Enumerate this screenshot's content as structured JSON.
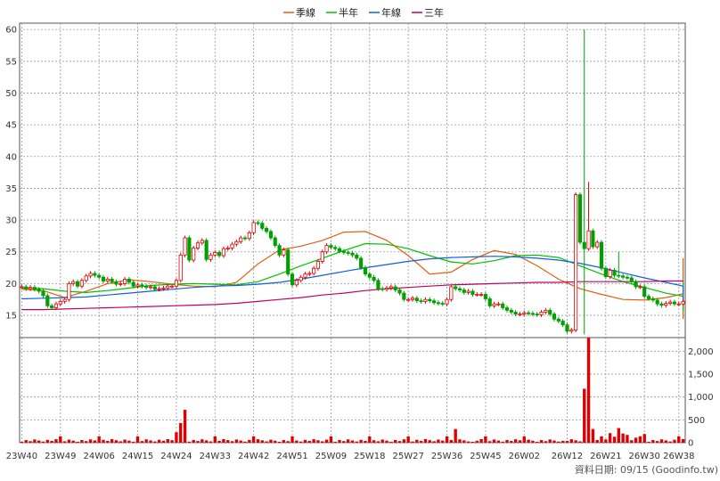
{
  "legend": [
    {
      "label": "季線",
      "color": "#e06010"
    },
    {
      "label": "半年",
      "color": "#00c000"
    },
    {
      "label": "年線",
      "color": "#1060e0"
    },
    {
      "label": "三年",
      "color": "#c00060"
    }
  ],
  "footer": "資料日期: 09/15  (Goodinfo.tw)",
  "colors": {
    "up": "#e00000",
    "down": "#00a000",
    "volume": "#e00000",
    "grid": "#999999",
    "frame": "#555555"
  },
  "chart_data": {
    "type": "candlestick",
    "price_ylim": [
      11.5,
      61
    ],
    "price_yticks": [
      15,
      20,
      25,
      30,
      35,
      40,
      45,
      50,
      55,
      60
    ],
    "volume_ylim": [
      0,
      2300
    ],
    "volume_yticks": [
      "0",
      "500",
      "1,000",
      "1,500",
      "2,000"
    ],
    "volume_ytick_values": [
      0,
      500,
      1000,
      1500,
      2000
    ],
    "x_tick_labels": [
      "23W40",
      "23W49",
      "24W06",
      "24W15",
      "24W24",
      "24W33",
      "24W42",
      "24W51",
      "25W09",
      "25W18",
      "25W27",
      "25W36",
      "25W45",
      "26W02",
      "26W12",
      "26W21",
      "26W30",
      "26W38"
    ],
    "x_tick_index": [
      0,
      9,
      18,
      27,
      36,
      45,
      54,
      63,
      72,
      81,
      90,
      99,
      108,
      117,
      127,
      136,
      145,
      153
    ],
    "num_weeks": 155,
    "close": [
      19.5,
      19.2,
      19.4,
      19.1,
      18.8,
      18.1,
      16.5,
      16.2,
      16.8,
      17.2,
      17.5,
      20.0,
      20.3,
      19.6,
      20.5,
      21.2,
      21.6,
      21.3,
      21.0,
      20.4,
      20.7,
      20.3,
      19.9,
      20.0,
      20.7,
      20.2,
      19.6,
      19.8,
      19.6,
      19.4,
      19.5,
      19.1,
      19.2,
      19.3,
      19.6,
      19.6,
      20.5,
      24.5,
      27.2,
      23.7,
      25.6,
      26.4,
      26.8,
      23.8,
      24.5,
      24.9,
      24.4,
      25.5,
      25.6,
      26.2,
      26.6,
      27.2,
      27.1,
      28.0,
      29.6,
      29.5,
      28.7,
      28.2,
      27.2,
      26.0,
      24.5,
      25.3,
      21.5,
      19.8,
      20.5,
      21.0,
      21.5,
      21.6,
      22.4,
      23.5,
      25.0,
      26.0,
      25.7,
      25.5,
      25.1,
      24.9,
      24.8,
      24.5,
      24.0,
      22.5,
      21.5,
      21.0,
      20.5,
      19.2,
      19.1,
      19.3,
      19.5,
      19.0,
      18.5,
      17.5,
      17.5,
      17.7,
      17.3,
      17.2,
      17.5,
      17.3,
      17.0,
      16.9,
      16.8,
      17.5,
      19.5,
      19.2,
      19.0,
      18.6,
      18.8,
      18.3,
      18.3,
      18.3,
      17.6,
      16.5,
      16.8,
      16.8,
      16.2,
      15.8,
      15.5,
      15.2,
      15.2,
      15.4,
      15.3,
      15.2,
      15.1,
      15.5,
      15.8,
      15.2,
      14.4,
      14.1,
      13.5,
      12.5,
      12.7,
      34.0,
      26.5,
      25.5,
      28.3,
      25.8,
      26.5,
      22.4,
      21.1,
      22.1,
      21.3,
      21.2,
      21.0,
      20.9,
      20.3,
      19.5,
      19.5,
      18.0,
      17.6,
      17.4,
      16.8,
      16.6,
      16.9,
      17.1,
      16.8,
      16.8,
      17.2
    ],
    "series": [
      {
        "name": "季線",
        "step": 5,
        "values": [
          19.1,
          18.9,
          17.8,
          18.8,
          20.0,
          20.6,
          20.3,
          19.9,
          19.6,
          19.5,
          20.2,
          23.1,
          25.3,
          25.9,
          26.8,
          28.1,
          28.2,
          26.8,
          24.4,
          21.5,
          21.8,
          23.8,
          25.2,
          24.6,
          22.8,
          20.7,
          19.2,
          18.3,
          17.5,
          17.4,
          17.8,
          18.4,
          17.8,
          16.9,
          15.8,
          15.3,
          15.4,
          15.2,
          14.4,
          16.3,
          24.0,
          22.9,
          21.3,
          19.8,
          18.4,
          17.3,
          17.0
        ]
      },
      {
        "name": "半年",
        "step": 5,
        "values": [
          19.3,
          19.2,
          18.8,
          18.6,
          18.9,
          19.3,
          19.7,
          19.9,
          20.0,
          19.9,
          19.8,
          20.3,
          21.5,
          22.8,
          24.0,
          25.2,
          26.3,
          26.2,
          25.5,
          24.4,
          23.4,
          23.1,
          23.6,
          24.4,
          24.5,
          24.1,
          22.8,
          21.5,
          20.3,
          19.4,
          18.5,
          18.0,
          17.9,
          17.7,
          17.3,
          16.9,
          16.5,
          16.1,
          15.7,
          15.6,
          16.9,
          17.9,
          18.8,
          19.5,
          20.0,
          20.2,
          20.1
        ]
      },
      {
        "name": "年線",
        "step": 5,
        "values": [
          17.6,
          17.7,
          17.8,
          17.9,
          18.2,
          18.5,
          18.8,
          19.1,
          19.4,
          19.6,
          19.7,
          19.9,
          20.2,
          20.7,
          21.3,
          21.9,
          22.5,
          23.0,
          23.5,
          23.9,
          24.1,
          24.2,
          24.3,
          24.2,
          24.0,
          23.7,
          23.2,
          22.5,
          21.7,
          20.9,
          20.2,
          19.6,
          19.2,
          18.9,
          18.5,
          18.0,
          17.5,
          17.1,
          16.9,
          16.9,
          17.3,
          17.6,
          17.9,
          18.2,
          18.4,
          18.5,
          18.6
        ]
      },
      {
        "name": "三年",
        "step": 5,
        "values": [
          15.9,
          15.9,
          16.0,
          16.1,
          16.2,
          16.3,
          16.4,
          16.5,
          16.6,
          16.7,
          16.9,
          17.2,
          17.5,
          17.8,
          18.2,
          18.5,
          18.9,
          19.2,
          19.4,
          19.6,
          19.8,
          19.9,
          20.0,
          20.1,
          20.2,
          20.2,
          20.3,
          20.3,
          20.3,
          20.3,
          20.4,
          20.4,
          20.4,
          20.4,
          20.4,
          20.4,
          20.4,
          20.4,
          20.4,
          20.4,
          20.5,
          20.5,
          20.5,
          20.5,
          20.5,
          20.5,
          20.5
        ]
      }
    ],
    "volume_spikes": {
      "131": 1180,
      "132": 2300,
      "133": 300,
      "137": 210,
      "138": 130,
      "139": 320,
      "140": 200,
      "141": 170,
      "143": 110,
      "145": 190,
      "37": 430,
      "38": 720,
      "36": 230,
      "101": 300,
      "113": 60,
      "126": 40,
      "105": 20
    }
  }
}
